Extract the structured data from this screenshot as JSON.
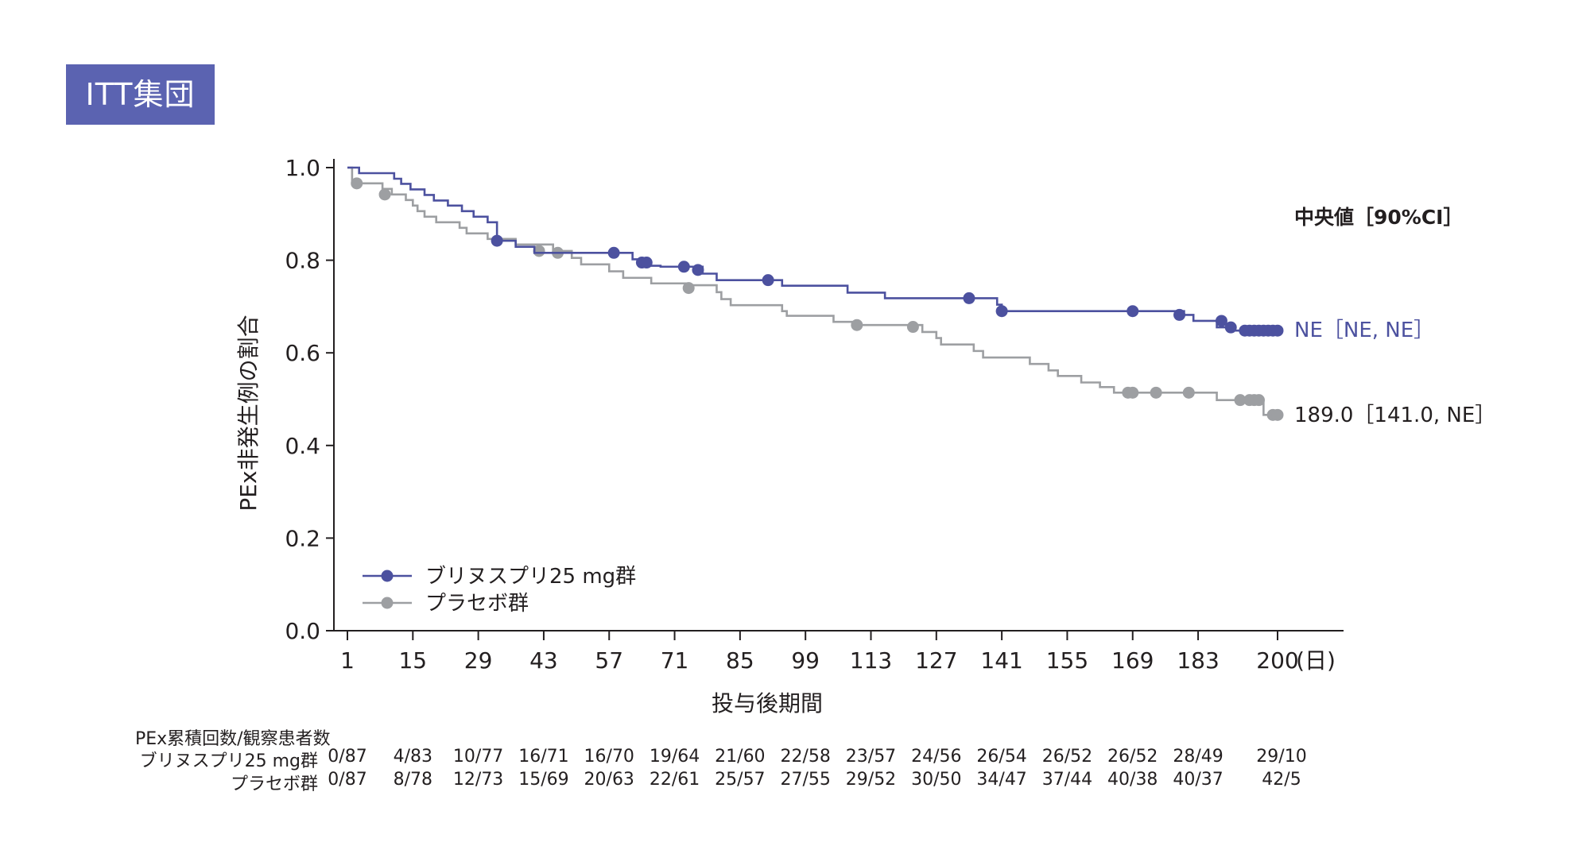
{
  "badge": "ITT集団",
  "chart_data": {
    "type": "line",
    "subtype": "kaplan-meier",
    "ylabel": "PEx非発生例の割合",
    "xlabel": "投与後期間",
    "x_unit": "(日)",
    "xlim": [
      1,
      200
    ],
    "ylim": [
      0,
      1
    ],
    "x_ticks": [
      1,
      15,
      29,
      43,
      57,
      71,
      85,
      99,
      113,
      127,
      141,
      155,
      169,
      183,
      200
    ],
    "y_ticks": [
      "0.0",
      "0.2",
      "0.4",
      "0.6",
      "0.8",
      "1.0"
    ],
    "median_header": "中央値［90%CI］",
    "legend_position": "bottom-left",
    "series": [
      {
        "name": "ブリヌスプリ25 mg群",
        "color": "#4c519f",
        "median_label": "NE［NE, NE］",
        "steps": [
          [
            1,
            1.0
          ],
          [
            3.5,
            0.988
          ],
          [
            11,
            0.976
          ],
          [
            12.5,
            0.965
          ],
          [
            14.5,
            0.953
          ],
          [
            17.5,
            0.941
          ],
          [
            19.5,
            0.929
          ],
          [
            22.5,
            0.918
          ],
          [
            25.5,
            0.906
          ],
          [
            28,
            0.894
          ],
          [
            31,
            0.882
          ],
          [
            33,
            0.842
          ],
          [
            37,
            0.829
          ],
          [
            41,
            0.816
          ],
          [
            62,
            0.802
          ],
          [
            64,
            0.788
          ],
          [
            68,
            0.786
          ],
          [
            77,
            0.771
          ],
          [
            80,
            0.757
          ],
          [
            94,
            0.745
          ],
          [
            108,
            0.73
          ],
          [
            116,
            0.718
          ],
          [
            130,
            0.718
          ],
          [
            140,
            0.704
          ],
          [
            141,
            0.69
          ],
          [
            180,
            0.682
          ],
          [
            182,
            0.669
          ],
          [
            187,
            0.655
          ],
          [
            190,
            0.648
          ],
          [
            200,
            0.648
          ]
        ],
        "censors": [
          [
            33,
            0.842
          ],
          [
            58,
            0.816
          ],
          [
            64,
            0.795
          ],
          [
            65,
            0.795
          ],
          [
            73,
            0.786
          ],
          [
            76,
            0.779
          ],
          [
            91,
            0.757
          ],
          [
            134,
            0.718
          ],
          [
            141,
            0.69
          ],
          [
            169,
            0.69
          ],
          [
            179,
            0.682
          ],
          [
            188,
            0.669
          ],
          [
            190,
            0.655
          ],
          [
            193,
            0.648
          ],
          [
            194,
            0.648
          ],
          [
            195,
            0.648
          ],
          [
            196,
            0.648
          ],
          [
            197,
            0.648
          ],
          [
            198,
            0.648
          ],
          [
            199,
            0.648
          ],
          [
            200,
            0.648
          ]
        ]
      },
      {
        "name": "プラセボ群",
        "color": "#9d9fa2",
        "median_label": "189.0［141.0, NE］",
        "steps": [
          [
            1,
            1.0
          ],
          [
            2,
            0.966
          ],
          [
            8.5,
            0.954
          ],
          [
            10.5,
            0.942
          ],
          [
            13.5,
            0.93
          ],
          [
            15,
            0.918
          ],
          [
            16,
            0.906
          ],
          [
            17.5,
            0.894
          ],
          [
            20,
            0.882
          ],
          [
            25,
            0.87
          ],
          [
            26.5,
            0.858
          ],
          [
            31,
            0.846
          ],
          [
            37,
            0.834
          ],
          [
            45,
            0.82
          ],
          [
            49,
            0.805
          ],
          [
            51,
            0.791
          ],
          [
            57,
            0.776
          ],
          [
            60,
            0.762
          ],
          [
            66,
            0.75
          ],
          [
            74,
            0.746
          ],
          [
            80,
            0.731
          ],
          [
            81,
            0.716
          ],
          [
            83,
            0.703
          ],
          [
            94,
            0.69
          ],
          [
            95,
            0.68
          ],
          [
            105,
            0.667
          ],
          [
            110,
            0.66
          ],
          [
            124,
            0.645
          ],
          [
            127,
            0.632
          ],
          [
            128,
            0.618
          ],
          [
            135,
            0.604
          ],
          [
            137,
            0.59
          ],
          [
            147,
            0.576
          ],
          [
            151,
            0.562
          ],
          [
            153,
            0.55
          ],
          [
            158,
            0.536
          ],
          [
            162,
            0.526
          ],
          [
            165,
            0.514
          ],
          [
            187,
            0.498
          ],
          [
            197,
            0.466
          ],
          [
            200,
            0.466
          ]
        ],
        "censors": [
          [
            3,
            0.966
          ],
          [
            9,
            0.942
          ],
          [
            42,
            0.82
          ],
          [
            46,
            0.816
          ],
          [
            74,
            0.74
          ],
          [
            110,
            0.66
          ],
          [
            122,
            0.656
          ],
          [
            168,
            0.514
          ],
          [
            169,
            0.514
          ],
          [
            174,
            0.514
          ],
          [
            181,
            0.514
          ],
          [
            192,
            0.498
          ],
          [
            194,
            0.498
          ],
          [
            195,
            0.498
          ],
          [
            196,
            0.498
          ],
          [
            199,
            0.466
          ],
          [
            200,
            0.466
          ]
        ]
      }
    ]
  },
  "risk_table": {
    "caption": "PEx累積回数/観察患者数",
    "rows": [
      {
        "label": "ブリヌスプリ25 mg群",
        "values": [
          "0/87",
          "4/83",
          "10/77",
          "16/71",
          "16/70",
          "19/64",
          "21/60",
          "22/58",
          "23/57",
          "24/56",
          "26/54",
          "26/52",
          "26/52",
          "28/49",
          "29/10"
        ]
      },
      {
        "label": "プラセボ群",
        "values": [
          "0/87",
          "8/78",
          "12/73",
          "15/69",
          "20/63",
          "22/61",
          "25/57",
          "27/55",
          "29/52",
          "30/50",
          "34/47",
          "37/44",
          "40/38",
          "40/37",
          "42/5"
        ]
      }
    ]
  }
}
